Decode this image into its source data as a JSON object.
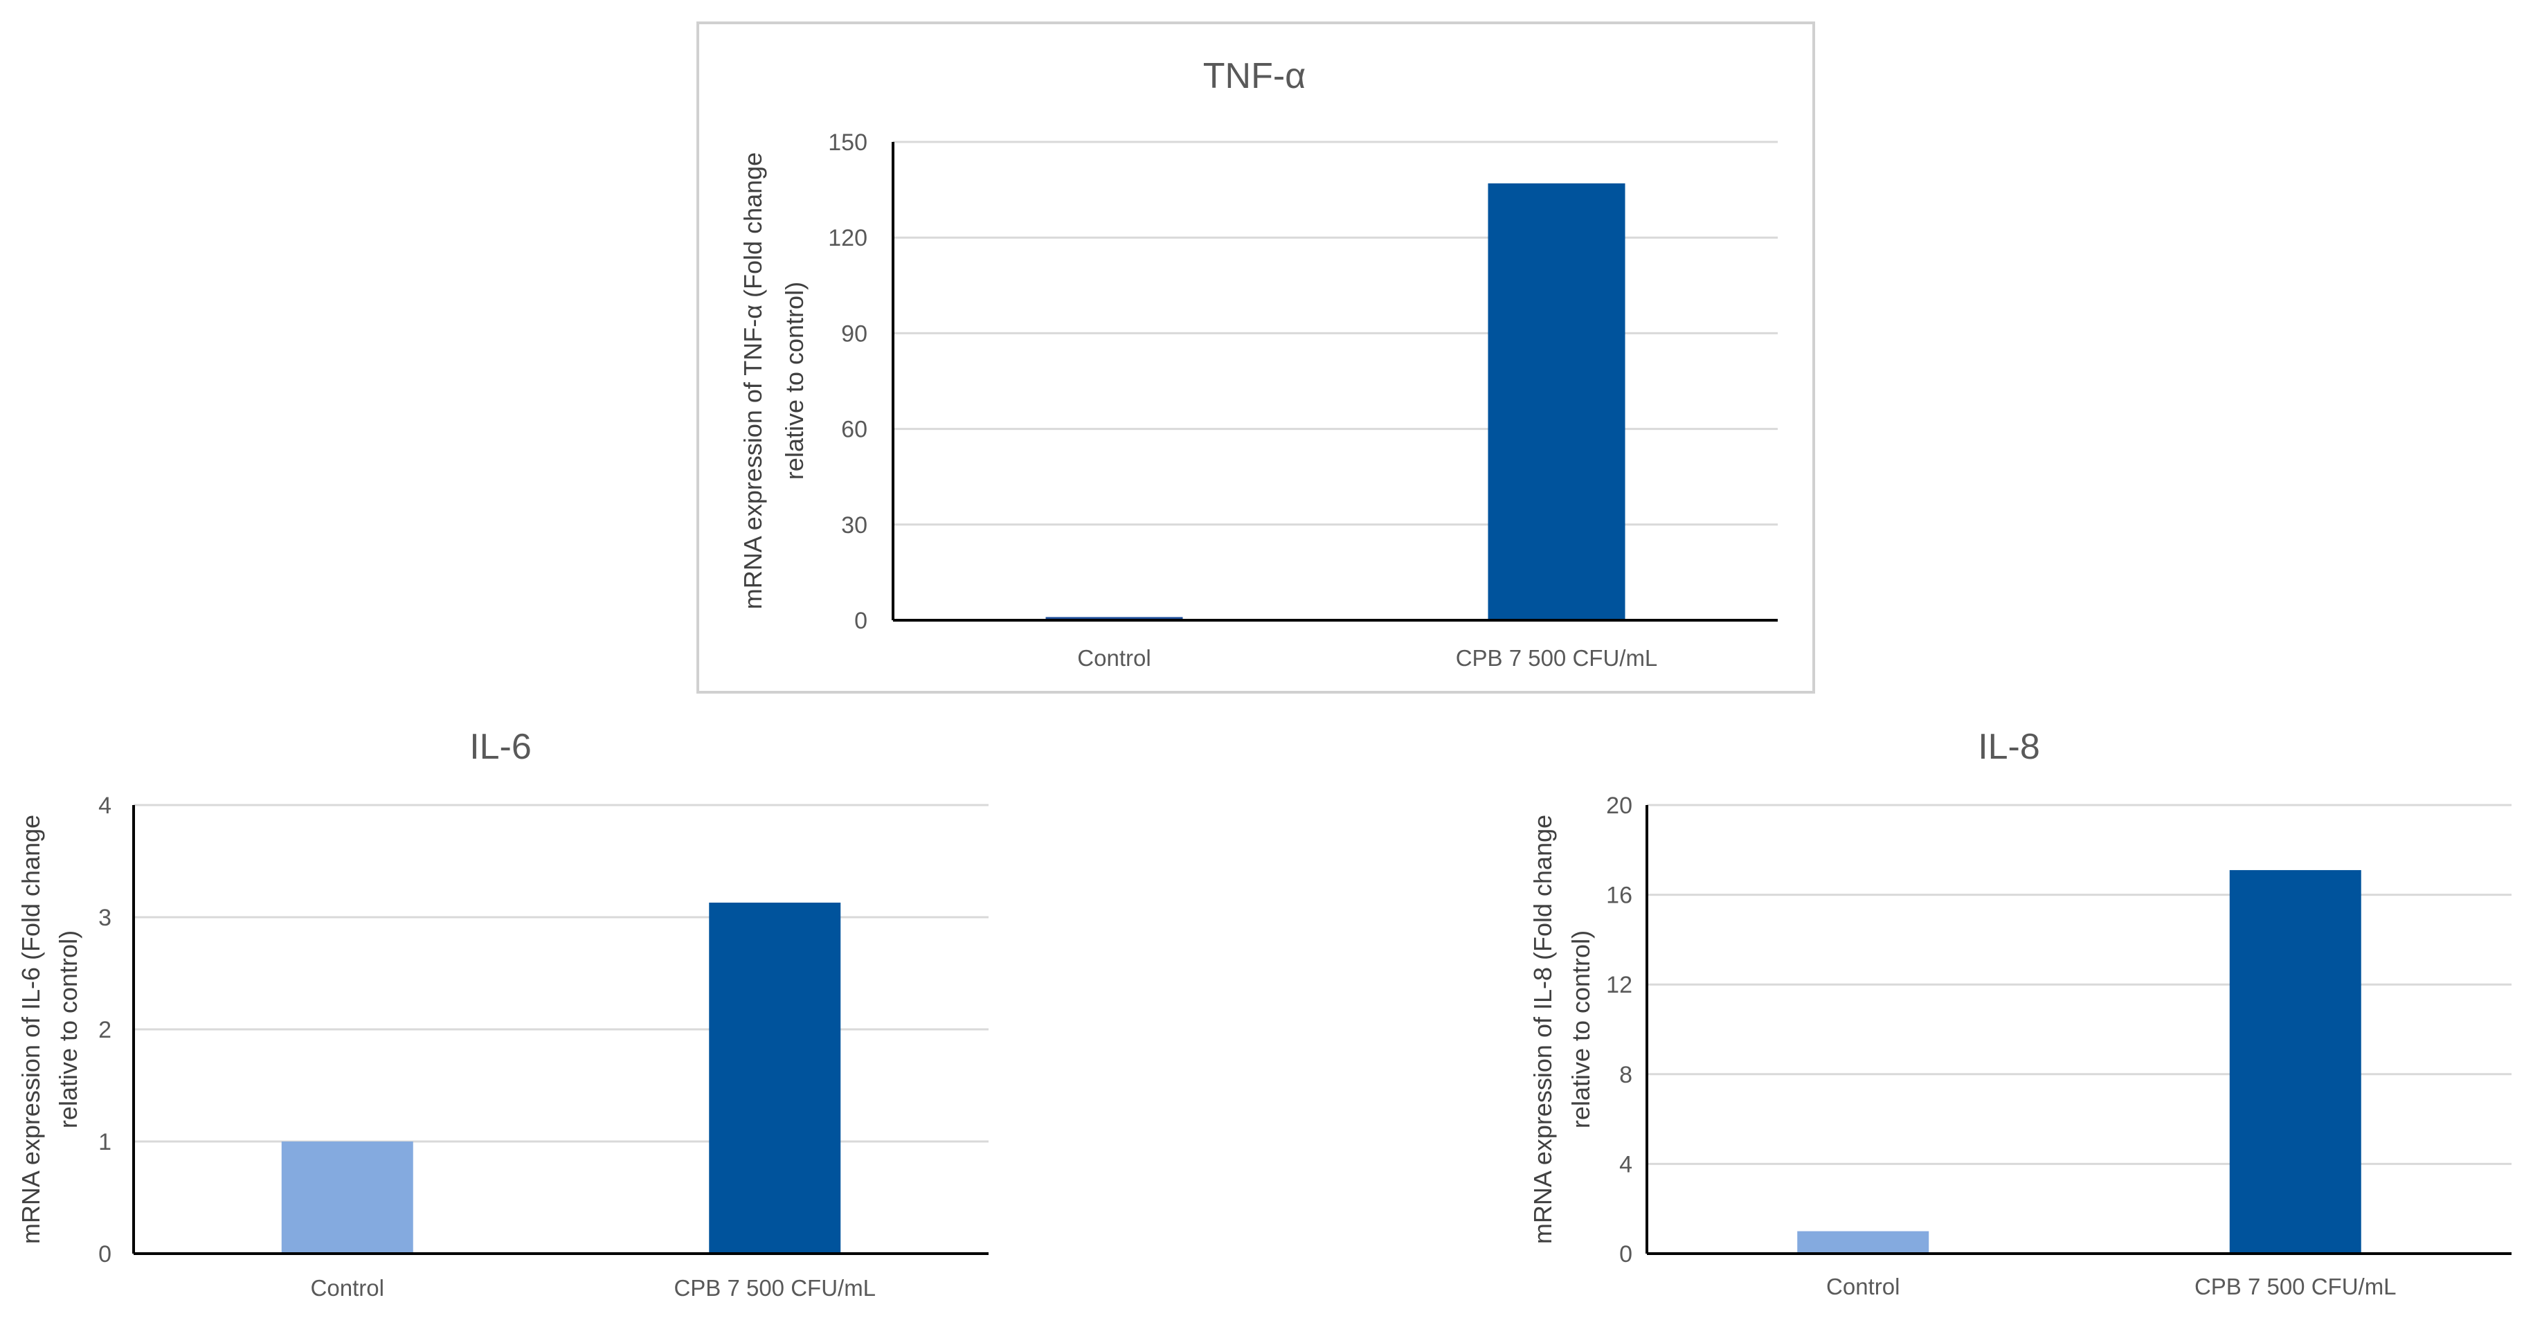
{
  "chart_data": [
    {
      "id": "tnf",
      "type": "bar",
      "title": "TNF-α",
      "ylabel_lines": [
        "mRNA expression of TNF-α (Fold change",
        "relative to control)"
      ],
      "categories": [
        "Control",
        "CPB 7 500 CFU/mL"
      ],
      "values": [
        1,
        137
      ],
      "bar_colors": [
        "#1f4e9a",
        "#00539c"
      ],
      "yticks": [
        0,
        30,
        60,
        90,
        120,
        150
      ],
      "ylim": [
        0,
        150
      ],
      "grid": true,
      "legend": "none",
      "bordered": true
    },
    {
      "id": "il6",
      "type": "bar",
      "title": "IL-6",
      "ylabel_lines": [
        "mRNA expression of IL-6 (Fold change",
        "relative to control)"
      ],
      "categories": [
        "Control",
        "CPB 7 500 CFU/mL"
      ],
      "values": [
        1.0,
        3.13
      ],
      "bar_colors": [
        "#84aadf",
        "#00539c"
      ],
      "yticks": [
        0,
        1,
        2,
        3,
        4
      ],
      "ylim": [
        0,
        4
      ],
      "grid": true,
      "legend": "none",
      "bordered": false
    },
    {
      "id": "il8",
      "type": "bar",
      "title": "IL-8",
      "ylabel_lines": [
        "mRNA expression of IL-8 (Fold change",
        "relative to control)"
      ],
      "categories": [
        "Control",
        "CPB 7 500 CFU/mL"
      ],
      "values": [
        1.0,
        17.1
      ],
      "bar_colors": [
        "#84aadf",
        "#00539c"
      ],
      "yticks": [
        0,
        4,
        8,
        12,
        16,
        20
      ],
      "ylim": [
        0,
        20
      ],
      "grid": true,
      "legend": "none",
      "bordered": false
    }
  ]
}
